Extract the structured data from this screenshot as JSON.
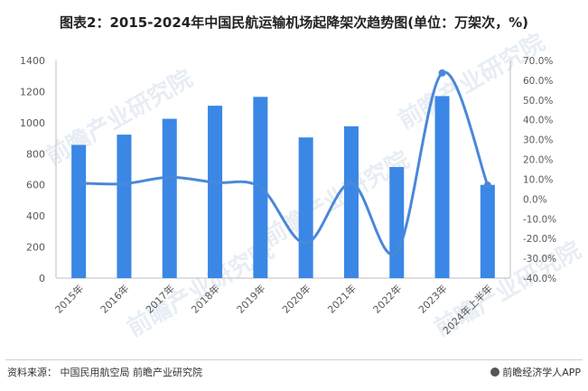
{
  "title": "图表2：2015-2024年中国民航运输机场起降架次趋势图(单位：万架次，%)",
  "source": "资料来源：  中国民用航空局 前瞻产业研究院",
  "brand": "前瞻经济学人APP",
  "watermark": "前瞻产业研究院",
  "colors": {
    "bar": "#3a87e6",
    "line": "#4a88d8",
    "axis": "#bfbfbf",
    "text": "#595959"
  },
  "chart_data": {
    "type": "bar",
    "categories": [
      "2015年",
      "2016年",
      "2017年",
      "2018年",
      "2019年",
      "2020年",
      "2021年",
      "2022年",
      "2023年",
      "2024年上半年"
    ],
    "series": [
      {
        "type": "bar",
        "axis": "left",
        "values": [
          857,
          923,
          1025,
          1109,
          1166,
          905,
          977,
          715,
          1171,
          600
        ]
      },
      {
        "type": "line",
        "axis": "right",
        "values": [
          8.0,
          7.7,
          11.0,
          8.3,
          5.9,
          -22.4,
          8.0,
          -26.8,
          63.7,
          7.0
        ]
      }
    ],
    "y_left": {
      "ylim": [
        0,
        1400
      ],
      "ticks": [
        "0",
        "200",
        "400",
        "600",
        "800",
        "1000",
        "1200",
        "1400"
      ]
    },
    "y_right": {
      "ylim": [
        -40,
        70
      ],
      "ticks": [
        "-40.0%",
        "-30.0%",
        "-20.0%",
        "-10.0%",
        "0.0%",
        "10.0%",
        "20.0%",
        "30.0%",
        "40.0%",
        "50.0%",
        "60.0%",
        "70.0%"
      ]
    },
    "grid": false,
    "legend": "none"
  }
}
